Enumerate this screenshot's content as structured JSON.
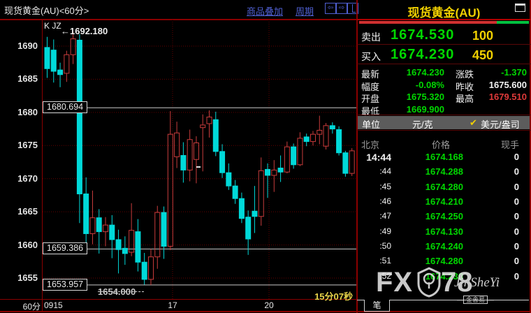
{
  "chart_panel": {
    "title": "现货黄金(AU)<60分>",
    "toolbar": {
      "overlay": "商品叠加",
      "period": "周期"
    },
    "indicator_label": "K JZ",
    "high_annotation": "←1692.180",
    "low_annotation": "1654.000",
    "countdown": "15分07秒",
    "x_period_label": "60分",
    "axis_boxes": [
      "1680.694",
      "1659.386",
      "1653.957"
    ]
  },
  "chart_data": {
    "type": "candlestick",
    "title": "现货黄金(AU) 60分K线",
    "ylim": [
      1653,
      1694
    ],
    "y_ticks": [
      1690,
      1685,
      1680,
      1675,
      1670,
      1665,
      1660,
      1655
    ],
    "x_ticks": [
      {
        "label": "0915",
        "x": 63,
        "align": "left"
      },
      {
        "label": "17",
        "x": 247,
        "align": "center"
      },
      {
        "label": "20",
        "x": 385,
        "align": "center"
      }
    ],
    "vgrid_x": [
      247,
      385
    ],
    "hlines": [
      1680.694,
      1659.386,
      1653.957
    ],
    "annotations": {
      "high": 1692.18,
      "low": 1654.0
    },
    "up_color": "#c83c3c",
    "down_color": "#00d9d9",
    "grid_color": "#640000",
    "hline_color": "#c8c8c8",
    "candles": [
      [
        1689.8,
        1691.4,
        1685.2,
        1686.6
      ],
      [
        1689.4,
        1691.0,
        1684.5,
        1686.2
      ],
      [
        1686.4,
        1687.5,
        1683.8,
        1685.7
      ],
      [
        1685.9,
        1689.3,
        1684.6,
        1688.7
      ],
      [
        1688.7,
        1692.18,
        1687.3,
        1691.1
      ],
      [
        1690.9,
        1691.8,
        1663.3,
        1667.7
      ],
      [
        1667.7,
        1670.2,
        1659.0,
        1661.7
      ],
      [
        1661.7,
        1668.2,
        1660.1,
        1664.1
      ],
      [
        1664.1,
        1665.4,
        1658.7,
        1662.0
      ],
      [
        1662.0,
        1664.2,
        1659.8,
        1663.0
      ],
      [
        1663.0,
        1664.5,
        1658.0,
        1660.8
      ],
      [
        1660.8,
        1662.3,
        1655.7,
        1659.3
      ],
      [
        1659.5,
        1661.3,
        1657.0,
        1658.7
      ],
      [
        1658.9,
        1666.3,
        1658.3,
        1662.2
      ],
      [
        1662.0,
        1663.9,
        1656.0,
        1657.4
      ],
      [
        1657.4,
        1658.8,
        1654.0,
        1654.8
      ],
      [
        1654.8,
        1659.4,
        1653.96,
        1658.2
      ],
      [
        1658.2,
        1665.9,
        1656.4,
        1664.9
      ],
      [
        1664.9,
        1665.8,
        1657.9,
        1659.8
      ],
      [
        1659.8,
        1680.2,
        1659.2,
        1676.7
      ],
      [
        1673.3,
        1678.6,
        1671.6,
        1676.9
      ],
      [
        1673.5,
        1675.5,
        1669.4,
        1671.3
      ],
      [
        1671.3,
        1677.4,
        1669.6,
        1675.9
      ],
      [
        1672.9,
        1676.4,
        1669.3,
        1675.4
      ],
      [
        1677.7,
        1679.7,
        1671.1,
        1678.1
      ],
      [
        1678.3,
        1680.3,
        1676.2,
        1679.3
      ],
      [
        1678.9,
        1680.1,
        1673.4,
        1674.1
      ],
      [
        1674.1,
        1675.2,
        1670.1,
        1670.9
      ],
      [
        1670.9,
        1672.3,
        1668.3,
        1668.9
      ],
      [
        1668.9,
        1669.8,
        1666.2,
        1667.0
      ],
      [
        1667.0,
        1667.9,
        1663.3,
        1664.0
      ],
      [
        1664.2,
        1665.2,
        1658.5,
        1660.9
      ],
      [
        1665.1,
        1668.9,
        1661.8,
        1664.3
      ],
      [
        1664.3,
        1673.2,
        1662.9,
        1671.2
      ],
      [
        1671.4,
        1672.3,
        1667.1,
        1670.5
      ],
      [
        1670.5,
        1672.8,
        1668.0,
        1671.3
      ],
      [
        1671.6,
        1673.5,
        1669.5,
        1671.0
      ],
      [
        1671.0,
        1675.6,
        1670.8,
        1674.8
      ],
      [
        1674.8,
        1675.3,
        1671.5,
        1672.1
      ],
      [
        1672.1,
        1677.0,
        1671.9,
        1676.1
      ],
      [
        1676.3,
        1676.8,
        1674.9,
        1675.6
      ],
      [
        1675.6,
        1677.2,
        1675.0,
        1676.7
      ],
      [
        1676.7,
        1679.5,
        1675.2,
        1677.3
      ],
      [
        1674.9,
        1678.4,
        1674.4,
        1678.0
      ],
      [
        1678.0,
        1678.5,
        1676.8,
        1677.5
      ],
      [
        1677.4,
        1677.9,
        1673.5,
        1673.9
      ],
      [
        1673.9,
        1674.2,
        1670.3,
        1670.8
      ],
      [
        1670.8,
        1674.6,
        1670.4,
        1674.2
      ]
    ]
  },
  "quote_panel": {
    "title": "现货黄金(AU)",
    "ratio": {
      "red_pct": 81,
      "green_pct": 19
    },
    "sell": {
      "label": "卖出",
      "price": "1674.530",
      "size": "100"
    },
    "buy": {
      "label": "买入",
      "price": "1674.230",
      "size": "450"
    },
    "stats": [
      {
        "label": "最新",
        "value": "1674.230",
        "color": "#00d800"
      },
      {
        "label": "涨跌",
        "value": "-1.370",
        "color": "#00d800"
      },
      {
        "label": "幅度",
        "value": "-0.08%",
        "color": "#00d800"
      },
      {
        "label": "昨收",
        "value": "1675.600",
        "color": "#f2f2f2"
      },
      {
        "label": "开盘",
        "value": "1675.320",
        "color": "#00d800"
      },
      {
        "label": "最高",
        "value": "1679.510",
        "color": "#e03a3a"
      },
      {
        "label": "最低",
        "value": "1669.900",
        "color": "#00d800"
      }
    ],
    "unit_row": {
      "label": "单位",
      "left": "元/克",
      "check": "✔",
      "right": "美元/盎司"
    },
    "table": {
      "headers": [
        "北京",
        "价格",
        "现手"
      ],
      "rows": [
        [
          "14:44",
          "1674.168",
          "0"
        ],
        [
          ":44",
          "1674.288",
          "0"
        ],
        [
          ":45",
          "1674.280",
          "0"
        ],
        [
          ":46",
          "1674.210",
          "0"
        ],
        [
          ":47",
          "1674.250",
          "0"
        ],
        [
          ":49",
          "1674.130",
          "0"
        ],
        [
          ":50",
          "1674.240",
          "0"
        ],
        [
          ":51",
          "1674.280",
          "0"
        ],
        [
          ":52",
          "1674.230",
          "0"
        ]
      ]
    },
    "tab": "笔"
  },
  "icons": {
    "back": "⇦",
    "forward": "⇨"
  },
  "watermark": {
    "fx": "FX",
    "n78": "78",
    "script": "JinSheYi",
    "badge": "金舍易",
    "dash": "—"
  },
  "colors": {
    "up": "#c83c3c",
    "down": "#00d9d9",
    "green": "#00d800",
    "yellow": "#f0d000",
    "accent_red": "#8a0000"
  }
}
